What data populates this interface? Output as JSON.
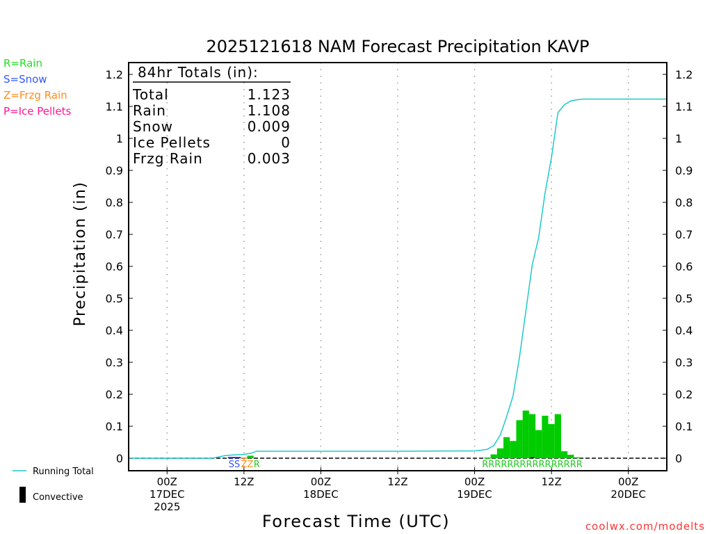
{
  "chart_data": {
    "type": "bar",
    "title": "2025121618 NAM Forecast Precipitation KAVP",
    "xlabel": "Forecast Time (UTC)",
    "ylabel": "Precipitation (in)",
    "xlim_hours_from_17DEC00Z": [
      -6,
      78
    ],
    "ylim": [
      -0.039,
      1.237
    ],
    "yticks": [
      "0",
      "0.1",
      "0.2",
      "0.3",
      "0.4",
      "0.5",
      "0.6",
      "0.7",
      "0.8",
      "0.9",
      "1",
      "1.1",
      "1.2"
    ],
    "ytick_values": [
      0,
      0.1,
      0.2,
      0.3,
      0.4,
      0.5,
      0.6,
      0.7,
      0.8,
      0.9,
      1,
      1.1,
      1.2
    ],
    "xticks": [
      {
        "hour": 0,
        "lines": [
          "00Z",
          "17DEC",
          "2025"
        ]
      },
      {
        "hour": 12,
        "lines": [
          "12Z"
        ]
      },
      {
        "hour": 24,
        "lines": [
          "00Z",
          "18DEC"
        ]
      },
      {
        "hour": 36,
        "lines": [
          "12Z"
        ]
      },
      {
        "hour": 48,
        "lines": [
          "00Z",
          "19DEC"
        ]
      },
      {
        "hour": 60,
        "lines": [
          "12Z"
        ]
      },
      {
        "hour": 72,
        "lines": [
          "00Z",
          "20DEC"
        ]
      }
    ],
    "grid": "vertical dotted",
    "series": [
      {
        "name": "Rain",
        "color": "#00cc00",
        "bars": [
          [
            13,
            0.008
          ],
          [
            50,
            0.002
          ],
          [
            51,
            0.012
          ],
          [
            52,
            0.031
          ],
          [
            53,
            0.066
          ],
          [
            54,
            0.054
          ],
          [
            55,
            0.119
          ],
          [
            56,
            0.149
          ],
          [
            57,
            0.138
          ],
          [
            58,
            0.088
          ],
          [
            59,
            0.133
          ],
          [
            60,
            0.107
          ],
          [
            61,
            0.138
          ],
          [
            62,
            0.022
          ],
          [
            63,
            0.011
          ],
          [
            64,
            0.003
          ]
        ]
      },
      {
        "name": "Snow",
        "color": "#1a1aff",
        "bars": [
          [
            10,
            0.004
          ],
          [
            11,
            0.004
          ]
        ]
      },
      {
        "name": "Frzg Rain",
        "color": "#ff8c1a",
        "bars": [
          [
            12,
            0.002
          ]
        ]
      },
      {
        "name": "Convective",
        "color": "#000000",
        "bars": [
          [
            57,
            0.003
          ]
        ]
      },
      {
        "name": "Running Total",
        "color": "#1fc8c8",
        "type": "line",
        "points": [
          [
            -6,
            0
          ],
          [
            7,
            0
          ],
          [
            8,
            0.004
          ],
          [
            9,
            0.008
          ],
          [
            10,
            0.01
          ],
          [
            12,
            0.012
          ],
          [
            13,
            0.015
          ],
          [
            14,
            0.022
          ],
          [
            36,
            0.022
          ],
          [
            48,
            0.023
          ],
          [
            49,
            0.025
          ],
          [
            50,
            0.028
          ],
          [
            51,
            0.04
          ],
          [
            52,
            0.072
          ],
          [
            53,
            0.13
          ],
          [
            54,
            0.195
          ],
          [
            55,
            0.315
          ],
          [
            56,
            0.46
          ],
          [
            57,
            0.605
          ],
          [
            58,
            0.69
          ],
          [
            59,
            0.83
          ],
          [
            60,
            0.94
          ],
          [
            61,
            1.08
          ],
          [
            62,
            1.105
          ],
          [
            63,
            1.117
          ],
          [
            64,
            1.121
          ],
          [
            65,
            1.123
          ],
          [
            78,
            1.123
          ]
        ]
      }
    ],
    "type_labels": [
      {
        "text": "SS",
        "color": "#3355ff",
        "hour": 10.5
      },
      {
        "text": "ZZ",
        "color": "#ff8c1a",
        "hour": 12.5
      },
      {
        "text": "R",
        "color": "#22cc22",
        "hour": 14
      },
      {
        "text": "RRRRRRRRRRRRRRRR",
        "color": "#22cc22",
        "hour": 57
      }
    ],
    "totals_box": {
      "heading": "84hr Totals (in):",
      "rows": [
        [
          "Total",
          "1.123"
        ],
        [
          "Rain",
          "1.108"
        ],
        [
          "Snow",
          "0.009"
        ],
        [
          "Ice Pellets",
          "0"
        ],
        [
          "Frzg Rain",
          "0.003"
        ]
      ]
    },
    "type_legend": [
      {
        "text": "R=Rain",
        "color": "#22dd22"
      },
      {
        "text": "S=Snow",
        "color": "#3355ff"
      },
      {
        "text": "Z=Frzg Rain",
        "color": "#ff8c1a"
      },
      {
        "text": "P=Ice Pellets",
        "color": "#ff1493"
      }
    ],
    "bottom_legend": [
      {
        "text": "Running Total",
        "color": "#1fc8c8"
      },
      {
        "text": "Convective",
        "color": "#000000"
      }
    ],
    "credit": "coolwx.com/modelts"
  }
}
